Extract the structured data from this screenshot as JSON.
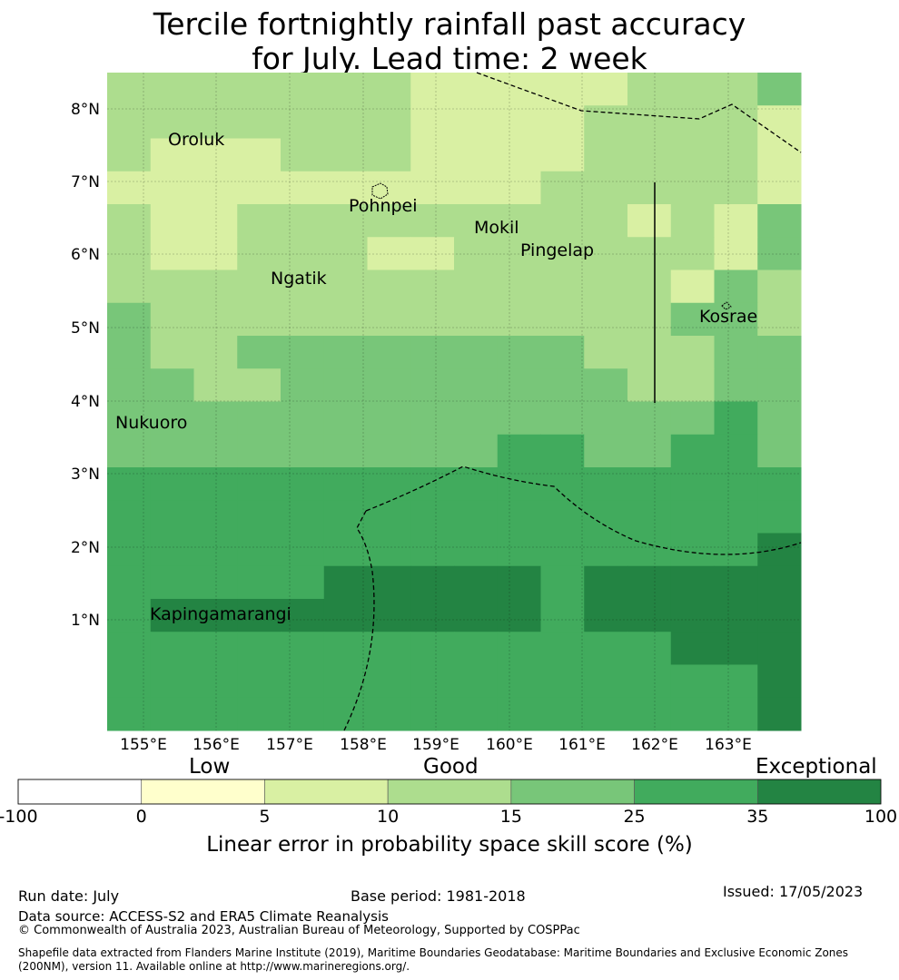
{
  "title": {
    "line1": "Tercile fortnightly rainfall past accuracy",
    "line2": "for July. Lead time: 2 week"
  },
  "map": {
    "lat_ticks": [
      "1°N",
      "2°N",
      "3°N",
      "4°N",
      "5°N",
      "6°N",
      "7°N",
      "8°N"
    ],
    "lon_ticks": [
      "155°E",
      "156°E",
      "157°E",
      "158°E",
      "159°E",
      "160°E",
      "161°E",
      "162°E",
      "163°E"
    ],
    "places": [
      {
        "name": "Oroluk"
      },
      {
        "name": "Pohnpei"
      },
      {
        "name": "Mokil"
      },
      {
        "name": "Pingelap"
      },
      {
        "name": "Ngatik"
      },
      {
        "name": "Kosrae"
      },
      {
        "name": "Nukuoro"
      },
      {
        "name": "Kapingamarangi"
      }
    ],
    "grid_levels_rows_north_to_south": [
      "2222222111112223",
      "2222222111122221",
      "2111222111122221",
      "1111111111222221",
      "2112222222221213",
      "2112221122222213",
      "2222222222222132",
      "3222222222222332",
      "3223333333322233",
      "3322333333332233",
      "3333333333333343",
      "3333333334433443",
      "4444444444444444",
      "4444444444444444",
      "4444444444444445",
      "4444455555455555",
      "4555555555455555",
      "4444444444444555",
      "4444444444444445",
      "4444444444444445"
    ]
  },
  "colorbar": {
    "categories": [
      {
        "range": "-100 to 0",
        "color": "#ffffff"
      },
      {
        "range": "0 to 5",
        "color": "#ffffcc"
      },
      {
        "range": "5 to 10",
        "color": "#d9f0a3"
      },
      {
        "range": "10 to 15",
        "color": "#addd8e"
      },
      {
        "range": "15 to 25",
        "color": "#78c679"
      },
      {
        "range": "25 to 35",
        "color": "#41ab5d"
      },
      {
        "range": "35 to 100",
        "color": "#238443"
      }
    ],
    "ticks": [
      "-100",
      "0",
      "5",
      "10",
      "15",
      "25",
      "35",
      "100"
    ],
    "words": {
      "low": "Low",
      "good": "Good",
      "exceptional": "Exceptional"
    },
    "label": "Linear error in probability space skill score (%)"
  },
  "footer": {
    "run_date": "Run date: July",
    "base_period": "Base period: 1981-2018",
    "issued": "Issued: 17/05/2023",
    "data_source": "Data source: ACCESS-S2 and ERA5 Climate Reanalysis",
    "copyright": "© Commonwealth of Australia 2023, Australian Bureau of Meteorology, Supported by COSPPac",
    "shapefile_line1": "Shapefile data extracted from Flanders Marine Institute (2019), Maritime Boundaries Geodatabase: Maritime Boundaries and Exclusive Economic Zones",
    "shapefile_line2": "(200NM), version 11. Available online at http://www.marineregions.org/."
  }
}
